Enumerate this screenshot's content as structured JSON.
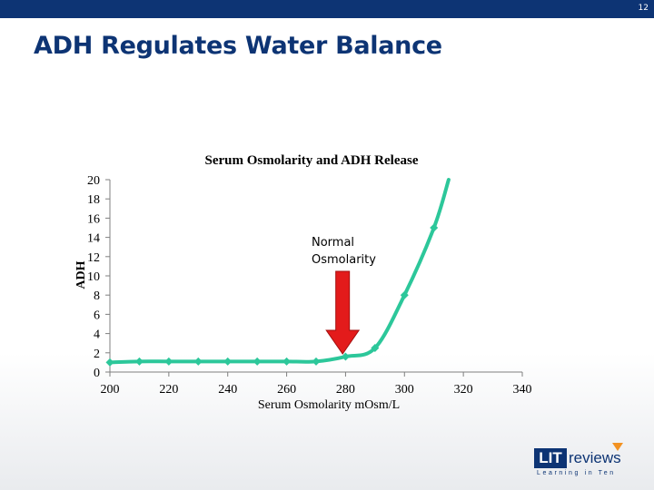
{
  "slide": {
    "number": "12",
    "title": "ADH Regulates Water Balance"
  },
  "colors": {
    "header_bar": "#0d3474",
    "title": "#0d3474",
    "series": "#2cc79a",
    "arrow": "#e31b1b",
    "axis": "#7f7f7f"
  },
  "chart_data": {
    "type": "line",
    "title": "Serum Osmolarity and ADH Release",
    "xlabel": "Serum Osmolarity mOsm/L",
    "ylabel": "ADH",
    "xlim": [
      200,
      340
    ],
    "ylim": [
      0,
      20
    ],
    "x_ticks": [
      200,
      220,
      240,
      260,
      280,
      300,
      320,
      340
    ],
    "y_ticks": [
      0,
      2,
      4,
      6,
      8,
      10,
      12,
      14,
      16,
      18,
      20
    ],
    "grid": false,
    "series": [
      {
        "x": [
          200,
          210,
          220,
          230,
          240,
          250,
          260,
          270,
          280,
          290,
          300,
          310,
          315
        ],
        "y": [
          1,
          1.1,
          1.1,
          1.1,
          1.1,
          1.1,
          1.1,
          1.1,
          1.6,
          2.5,
          8,
          15,
          20
        ]
      }
    ],
    "annotations": [
      {
        "text": "Normal Osmolarity",
        "x": 279,
        "y": 1.6,
        "marker": "down-arrow"
      }
    ]
  },
  "logo": {
    "box_text": "LIT",
    "rest_text": "reviews",
    "tagline": "Learning in Ten"
  }
}
